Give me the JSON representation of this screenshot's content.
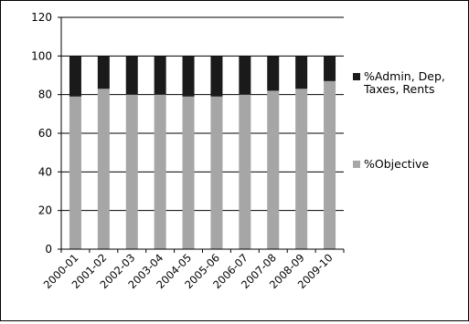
{
  "chart_data": {
    "type": "bar",
    "stacked": true,
    "categories": [
      "2000-01",
      "2001-02",
      "2002-03",
      "2003-04",
      "2004-05",
      "2005-06",
      "2006-07",
      "2007-08",
      "2008-09",
      "2009-10"
    ],
    "series": [
      {
        "name": "%Objective",
        "color": "#a6a6a6",
        "values": [
          79,
          83,
          80,
          80,
          79,
          79,
          80,
          82,
          83,
          87
        ]
      },
      {
        "name": "%Admin, Dep, Taxes, Rents",
        "color": "#1a1a1a",
        "values": [
          21,
          17,
          20,
          20,
          21,
          21,
          20,
          18,
          17,
          13
        ]
      }
    ],
    "ylim": [
      0,
      120
    ],
    "yticks": [
      "0",
      "20",
      "40",
      "60",
      "80",
      "100",
      "120"
    ],
    "grid": true,
    "legend_position": "right",
    "legend": [
      {
        "marker_color": "#1a1a1a",
        "lines": [
          "%Admin, Dep,",
          "Taxes, Rents"
        ]
      },
      {
        "marker_color": "#a6a6a6",
        "lines": [
          "%Objective"
        ]
      }
    ]
  }
}
